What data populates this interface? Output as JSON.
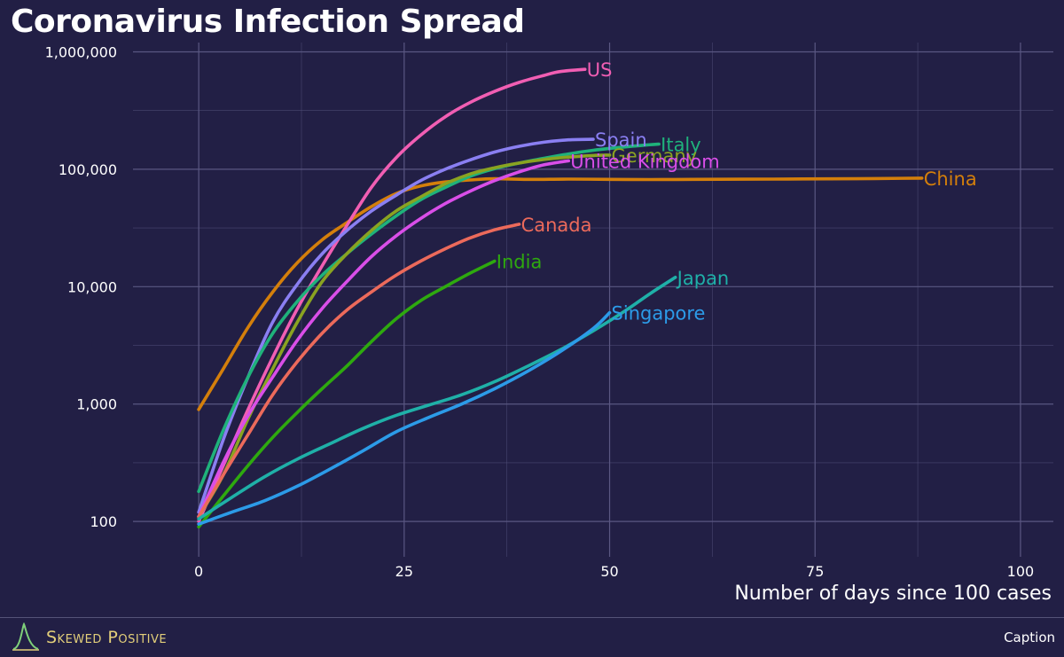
{
  "chart_data": {
    "type": "line",
    "title": "Coronavirus Infection Spread",
    "xlabel": "Number of days since 100 cases",
    "ylabel": "",
    "xlim": [
      -8,
      104
    ],
    "ylim": [
      50,
      1200000
    ],
    "y_scale": "log",
    "grid": true,
    "legend": "direct labels at line ends",
    "x_ticks": [
      {
        "value": 0,
        "label": "0"
      },
      {
        "value": 25,
        "label": "25"
      },
      {
        "value": 50,
        "label": "50"
      },
      {
        "value": 75,
        "label": "75"
      },
      {
        "value": 100,
        "label": "100"
      }
    ],
    "y_ticks": [
      {
        "value": 100,
        "label": "100"
      },
      {
        "value": 1000,
        "label": "1,000"
      },
      {
        "value": 10000,
        "label": "10,000"
      },
      {
        "value": 100000,
        "label": "100,000"
      },
      {
        "value": 1000000,
        "label": "1,000,000"
      }
    ],
    "series": [
      {
        "name": "China",
        "color": "#d47f0b",
        "x": [
          0,
          3,
          6,
          9,
          12,
          15,
          18,
          21,
          24,
          27,
          30,
          33,
          36,
          40,
          45,
          50,
          55,
          60,
          70,
          80,
          88
        ],
        "y": [
          900,
          2000,
          4500,
          9000,
          16000,
          25000,
          35000,
          48000,
          62000,
          72000,
          78000,
          81000,
          83000,
          82000,
          82500,
          82000,
          81700,
          82000,
          82500,
          83000,
          84000
        ]
      },
      {
        "name": "US",
        "color": "#f15eb3",
        "x": [
          0,
          3,
          6,
          9,
          12,
          15,
          18,
          21,
          24,
          27,
          30,
          33,
          36,
          39,
          42,
          44,
          47
        ],
        "y": [
          100,
          300,
          900,
          2500,
          6500,
          15000,
          33000,
          70000,
          125000,
          195000,
          280000,
          370000,
          460000,
          550000,
          630000,
          680000,
          710000
        ]
      },
      {
        "name": "Spain",
        "color": "#8a7ff2",
        "x": [
          0,
          3,
          6,
          9,
          12,
          15,
          18,
          21,
          24,
          27,
          30,
          33,
          36,
          39,
          42,
          45,
          48
        ],
        "y": [
          120,
          500,
          1700,
          5000,
          10500,
          19000,
          30000,
          44000,
          60000,
          80000,
          100000,
          120000,
          140000,
          157000,
          170000,
          178000,
          180000
        ]
      },
      {
        "name": "Italy",
        "color": "#1fb27b",
        "x": [
          0,
          3,
          6,
          9,
          12,
          15,
          18,
          21,
          24,
          27,
          30,
          33,
          36,
          39,
          42,
          45,
          48,
          51,
          54,
          56
        ],
        "y": [
          180,
          600,
          1700,
          4000,
          7500,
          12500,
          19000,
          28000,
          40000,
          55000,
          70000,
          87000,
          101000,
          113000,
          124000,
          135000,
          145000,
          153000,
          160000,
          164000
        ]
      },
      {
        "name": "Germany",
        "color": "#8aa321",
        "x": [
          0,
          3,
          6,
          9,
          12,
          15,
          18,
          21,
          24,
          27,
          30,
          33,
          36,
          39,
          42,
          45,
          48,
          50
        ],
        "y": [
          110,
          250,
          750,
          2000,
          5000,
          11000,
          19000,
          30000,
          44000,
          58000,
          75000,
          91000,
          103000,
          113000,
          121000,
          127000,
          131000,
          132000
        ]
      },
      {
        "name": "United Kingdom",
        "color": "#d94ee8",
        "x": [
          0,
          3,
          6,
          9,
          12,
          15,
          18,
          21,
          24,
          27,
          30,
          33,
          36,
          39,
          42,
          45
        ],
        "y": [
          110,
          320,
          800,
          1700,
          3500,
          6500,
          11000,
          18000,
          27000,
          38000,
          51000,
          65000,
          80000,
          95000,
          109000,
          118000
        ]
      },
      {
        "name": "Canada",
        "color": "#ec6a5b",
        "x": [
          0,
          3,
          6,
          9,
          12,
          15,
          18,
          21,
          24,
          27,
          30,
          33,
          36,
          39
        ],
        "y": [
          110,
          250,
          550,
          1200,
          2300,
          4000,
          6300,
          9000,
          12500,
          16500,
          21000,
          26000,
          30500,
          34000
        ]
      },
      {
        "name": "India",
        "color": "#2ea90f",
        "x": [
          0,
          3,
          6,
          9,
          12,
          15,
          18,
          21,
          24,
          27,
          30,
          33,
          36
        ],
        "y": [
          90,
          165,
          300,
          520,
          850,
          1350,
          2100,
          3400,
          5300,
          7600,
          10000,
          13000,
          16500
        ]
      },
      {
        "name": "Japan",
        "color": "#1fb0a8",
        "x": [
          0,
          4,
          8,
          12,
          16,
          20,
          24,
          28,
          32,
          36,
          40,
          44,
          48,
          52,
          55,
          58
        ],
        "y": [
          105,
          160,
          240,
          340,
          460,
          620,
          800,
          980,
          1200,
          1550,
          2100,
          2900,
          4200,
          6300,
          8800,
          12000
        ]
      },
      {
        "name": "Singapore",
        "color": "#2c9be8",
        "x": [
          0,
          4,
          8,
          12,
          16,
          20,
          24,
          28,
          32,
          36,
          40,
          44,
          48,
          50
        ],
        "y": [
          95,
          120,
          150,
          200,
          280,
          400,
          580,
          770,
          1000,
          1350,
          1900,
          2800,
          4400,
          6000
        ]
      }
    ]
  },
  "x_axis_title": "Number of days since 100 cases",
  "brand": {
    "name": "Skewed Positive",
    "logo_icon": "bell-curve-icon"
  },
  "caption": "Caption"
}
